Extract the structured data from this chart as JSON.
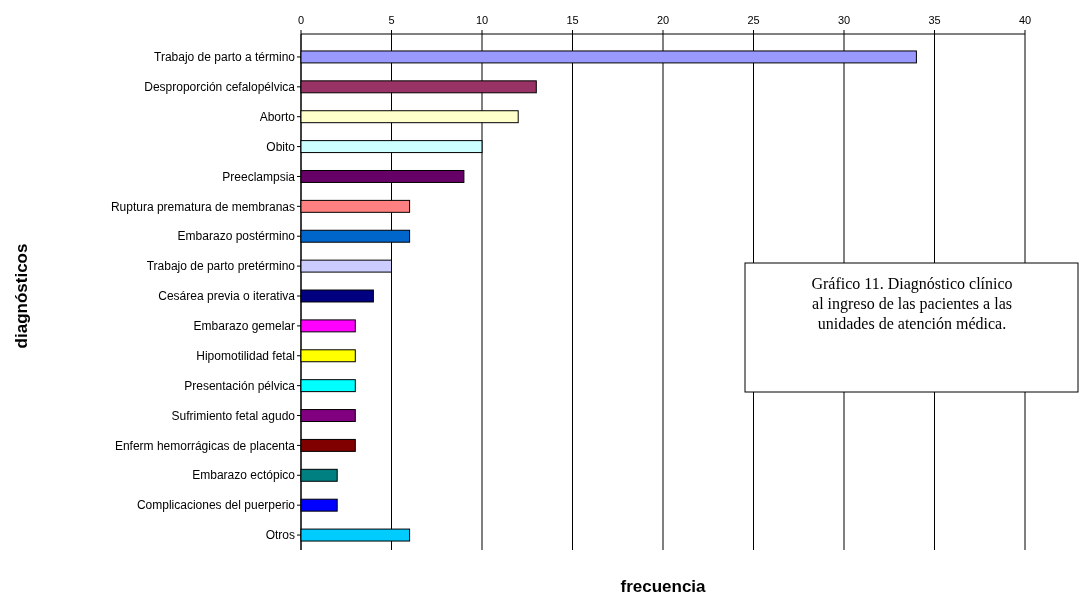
{
  "chart_data": {
    "type": "bar",
    "orientation": "horizontal",
    "xlabel": "frecuencia",
    "ylabel": "diagnósticos",
    "categories": [
      "Trabajo de parto a término",
      "Desproporción cefalopélvica",
      "Aborto",
      "Obito",
      "Preeclampsia",
      "Ruptura prematura de membranas",
      "Embarazo postérmino",
      "Trabajo de parto pretérmino",
      "Cesárea previa o iterativa",
      "Embarazo gemelar",
      "Hipomotilidad fetal",
      "Presentación pélvica",
      "Sufrimiento fetal agudo",
      "Enferm hemorrágicas de placenta",
      "Embarazo ectópico",
      "Complicaciones del puerperio",
      "Otros"
    ],
    "values": [
      34,
      13,
      12,
      10,
      9,
      6,
      6,
      5,
      4,
      3,
      3,
      3,
      3,
      3,
      2,
      2,
      6
    ],
    "colors": [
      "#9999ff",
      "#993366",
      "#ffffcc",
      "#ccffff",
      "#660066",
      "#ff8080",
      "#0066cc",
      "#ccccff",
      "#000080",
      "#ff00ff",
      "#ffff00",
      "#00ffff",
      "#800080",
      "#800000",
      "#008080",
      "#0000ff",
      "#00ccff"
    ],
    "xlim": [
      0,
      40
    ],
    "xticks": [
      0,
      5,
      10,
      15,
      20,
      25,
      30,
      35,
      40
    ],
    "grid": "x",
    "annotations": [
      "Gráfico 11. Diagnóstico clínico al ingreso de las pacientes a las unidades de atención médica."
    ]
  }
}
